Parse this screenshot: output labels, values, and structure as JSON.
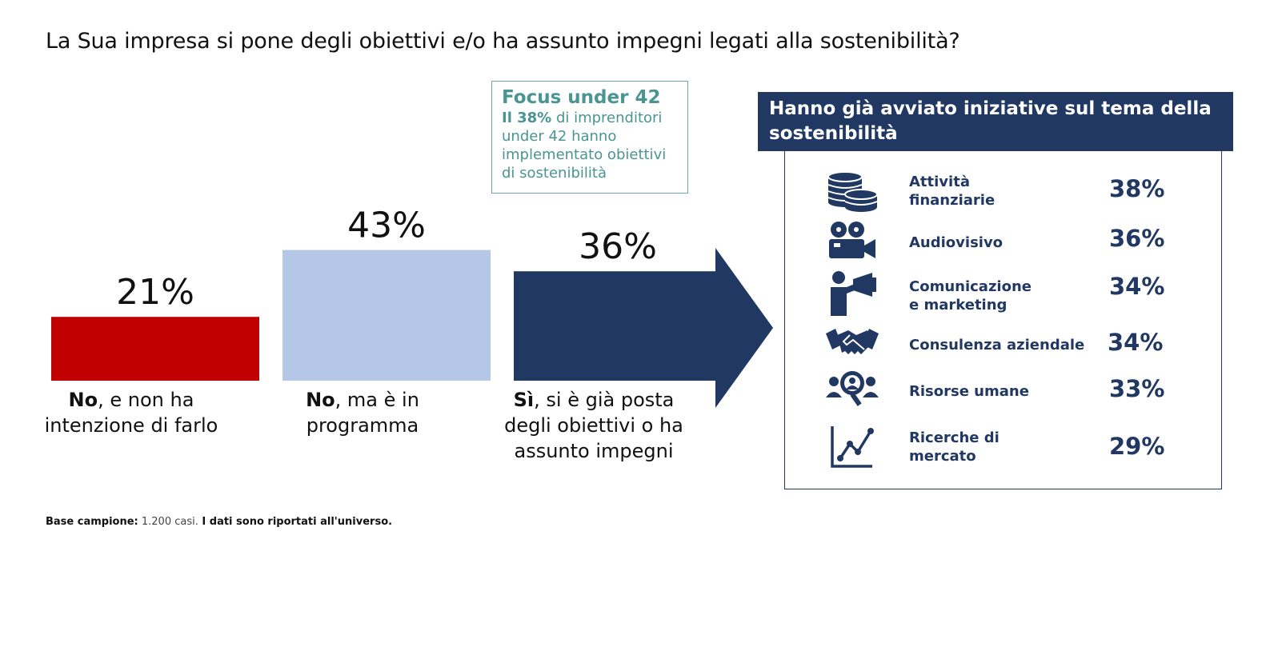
{
  "title": "La Sua impresa si pone degli obiettivi e/o ha assunto impegni legati alla sostenibilità?",
  "chart_data": [
    {
      "type": "bar",
      "categories": [
        "No, e non ha intenzione di farlo",
        "No, ma è in programma",
        "Sì, si è già posta degli obiettivi o ha assunto impegni"
      ],
      "values": [
        21,
        43,
        36
      ],
      "value_labels": [
        "21%",
        "43%",
        "36%"
      ],
      "colors": [
        "#c00000",
        "#b4c7e7",
        "#213863"
      ],
      "ylim": [
        0,
        100
      ]
    },
    {
      "type": "table",
      "title": "Hanno già avviato iniziative sul tema della sostenibilità",
      "categories": [
        "Attività finanziarie",
        "Audiovisivo",
        "Comunicazione e marketing",
        "Consulenza aziendale",
        "Risorse umane",
        "Ricerche di mercato"
      ],
      "values": [
        38,
        36,
        34,
        34,
        33,
        29
      ],
      "value_labels": [
        "38%",
        "36%",
        "34%",
        "34%",
        "33%",
        "29%"
      ]
    }
  ],
  "bar_labels": [
    {
      "bold": "No",
      "rest_1": ", e non ha",
      "rest_2": "intenzione di farlo"
    },
    {
      "bold": "No",
      "rest_1": ", ma è in",
      "rest_2": "programma"
    },
    {
      "bold": "Sì",
      "rest_1": ", si è già posta",
      "rest_2": "degli obiettivi o ha",
      "rest_3": "assunto impegni"
    }
  ],
  "focus": {
    "title": "Focus under 42",
    "bold": "Il 38%",
    "text_1": " di imprenditori",
    "text_2": "under 42 hanno",
    "text_3": "implementato obiettivi",
    "text_4": "di sostenibilità"
  },
  "panel": {
    "title": "Hanno già avviato iniziative sul tema della sostenibilità",
    "rows": [
      {
        "line_1": "Attività",
        "line_2": "finanziarie",
        "value": "38%",
        "icon": "coins-icon"
      },
      {
        "line_1": "Audiovisivo",
        "line_2": "",
        "value": "36%",
        "icon": "video-camera-icon"
      },
      {
        "line_1": "Comunicazione",
        "line_2": "e marketing",
        "value": "34%",
        "icon": "megaphone-icon"
      },
      {
        "line_1": "Consulenza aziendale",
        "line_2": "",
        "value": "34%",
        "icon": "handshake-icon"
      },
      {
        "line_1": "Risorse umane",
        "line_2": "",
        "value": "33%",
        "icon": "people-search-icon"
      },
      {
        "line_1": "Ricerche di",
        "line_2": "mercato",
        "value": "29%",
        "icon": "line-chart-icon"
      }
    ]
  },
  "footnote": {
    "label": "Base campione:",
    "sample": " 1.200 casi.",
    "note": " I dati sono riportati all'universo."
  },
  "colors": {
    "navy": "#213863",
    "red": "#c00000",
    "light_blue": "#b4c7e7",
    "teal": "#4a9592"
  }
}
